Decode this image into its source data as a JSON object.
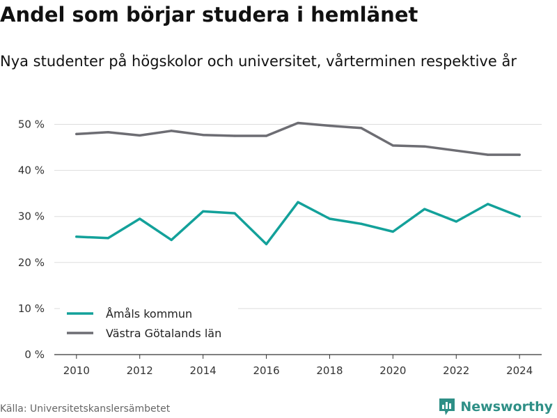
{
  "header": {
    "title": "Andel som börjar studera i hemlänet",
    "subtitle": "Nya studenter på högskolor och universitet, vårterminen respektive år"
  },
  "footer": {
    "source": "Källa: Universitetskanslersämbetet",
    "brand": "Newsworthy"
  },
  "colors": {
    "teal": "#13a19a",
    "gray": "#6d6d73",
    "grid": "#dddddd",
    "brand": "#2e8f86"
  },
  "chart_data": {
    "type": "line",
    "x": [
      2010,
      2011,
      2012,
      2013,
      2014,
      2015,
      2016,
      2017,
      2018,
      2019,
      2020,
      2021,
      2022,
      2023,
      2024
    ],
    "xticks": [
      2010,
      2012,
      2014,
      2016,
      2018,
      2020,
      2022,
      2024
    ],
    "xtick_labels": [
      "2010",
      "2012",
      "2014",
      "2016",
      "2018",
      "2020",
      "2022",
      "2024"
    ],
    "yticks": [
      0,
      10,
      20,
      30,
      40,
      50
    ],
    "ytick_labels": [
      "0 %",
      "10 %",
      "20 %",
      "30 %",
      "40 %",
      "50 %"
    ],
    "ylim": [
      0,
      50
    ],
    "xlim": [
      2009.3,
      2024.7
    ],
    "grid": true,
    "legend_position": "bottom-left",
    "series": [
      {
        "name": "Åmåls kommun",
        "color": "#13a19a",
        "values": [
          25.6,
          25.3,
          29.5,
          24.9,
          31.1,
          30.7,
          24.0,
          33.1,
          29.5,
          28.4,
          26.7,
          31.6,
          28.9,
          32.7,
          30.0
        ]
      },
      {
        "name": "Västra Götalands län",
        "color": "#6d6d73",
        "values": [
          47.9,
          48.3,
          47.6,
          48.6,
          47.7,
          47.5,
          47.5,
          50.3,
          49.7,
          49.2,
          45.4,
          45.2,
          44.3,
          43.4,
          43.4
        ]
      }
    ]
  }
}
